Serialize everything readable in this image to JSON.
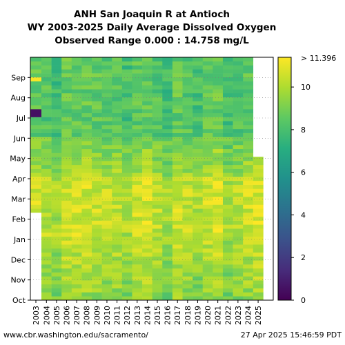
{
  "chart_data": {
    "type": "heatmap",
    "title_lines": [
      "ANH San Joaquin R at Antioch",
      "WY 2003-2025 Daily Average Dissolved Oxygen",
      "Observed Range 0.000 : 14.758 mg/L"
    ],
    "x_categories": [
      "2003",
      "2004",
      "2005",
      "2006",
      "2007",
      "2008",
      "2009",
      "2010",
      "2011",
      "2012",
      "2013",
      "2014",
      "2015",
      "2016",
      "2017",
      "2018",
      "2019",
      "2020",
      "2021",
      "2022",
      "2023",
      "2024",
      "2025"
    ],
    "y_month_labels": [
      "Oct",
      "Nov",
      "Dec",
      "Jan",
      "Feb",
      "Mar",
      "Apr",
      "May",
      "Jun",
      "Jul",
      "Aug",
      "Sep"
    ],
    "colorbar": {
      "min": 0,
      "max": 11.396,
      "ticks": [
        0,
        2,
        4,
        6,
        8,
        10
      ],
      "top_label": "> 11.396",
      "colormap": "viridis"
    },
    "approx_typical_values_mg_per_L": {
      "fall_oct_dec": 9.3,
      "winter_jan_mar": 10.3,
      "spring_apr_may": 9.7,
      "summer_jun_sep": 8.3
    },
    "notes": {
      "low_do_event_2003_july": 0.5,
      "high_do_2003_aug_end": 11.3
    },
    "grid": true
  },
  "footer": {
    "source": "www.cbr.washington.edu/sacramento/",
    "timestamp": "27 Apr 2025 15:46:59 PDT"
  }
}
